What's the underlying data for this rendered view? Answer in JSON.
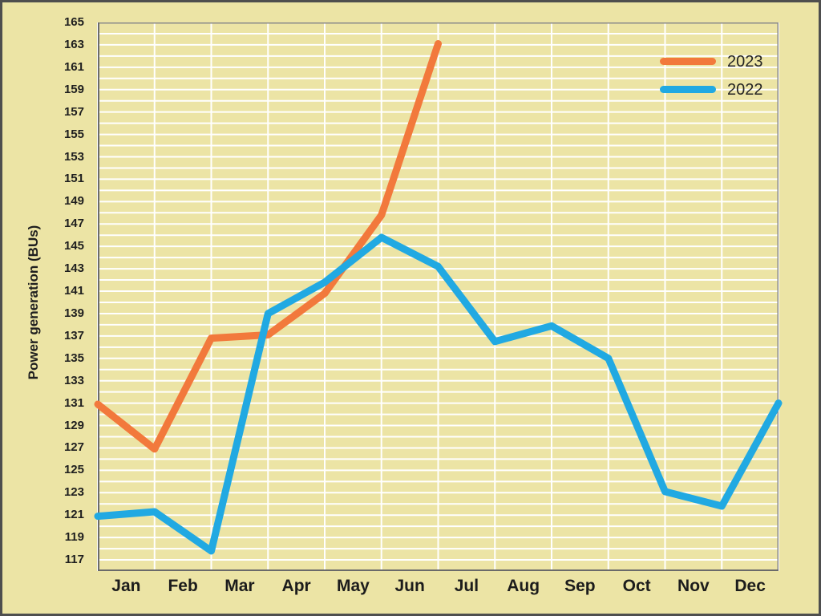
{
  "chart_data": {
    "type": "line",
    "title": "",
    "xlabel": "",
    "ylabel": "Power generation (BUs)",
    "y_axis": {
      "min": 116,
      "max": 165,
      "tick_labels": [
        117,
        119,
        121,
        123,
        125,
        127,
        129,
        131,
        133,
        135,
        137,
        139,
        141,
        143,
        145,
        147,
        149,
        151,
        153,
        155,
        157,
        159,
        161,
        163,
        165
      ],
      "gridline_step": 1,
      "grid": true
    },
    "categories": [
      "Jan",
      "Feb",
      "Mar",
      "Apr",
      "May",
      "Jun",
      "Jul",
      "Aug",
      "Sep",
      "Oct",
      "Nov",
      "Dec"
    ],
    "point_placement_note": "13 data slots sit on the 13 vertical gridlines; slot 0 is a lead-in value drawn on the y-axis itself, slots 1-12 correspond to Jan-Dec whose labels are centered between gridlines",
    "series": [
      {
        "name": "2023",
        "color": "#f2793c",
        "values_with_lead_in": [
          130.9,
          126.9,
          136.8,
          137.1,
          140.8,
          147.8,
          163.1
        ]
      },
      {
        "name": "2022",
        "color": "#21a9e2",
        "values_with_lead_in": [
          120.9,
          121.3,
          117.8,
          139.0,
          141.8,
          145.8,
          143.2,
          136.5,
          137.9,
          135.0,
          123.1,
          121.8,
          131.0
        ]
      }
    ],
    "legend_position": "top-right",
    "colors": {
      "background": "#ece4a5",
      "gridline": "#ffffff",
      "plot_border": "#8a8a8a",
      "axis_line": "#6a6a6a",
      "outer_frame": "#4e4e4e",
      "text": "#1f1f1f"
    }
  }
}
